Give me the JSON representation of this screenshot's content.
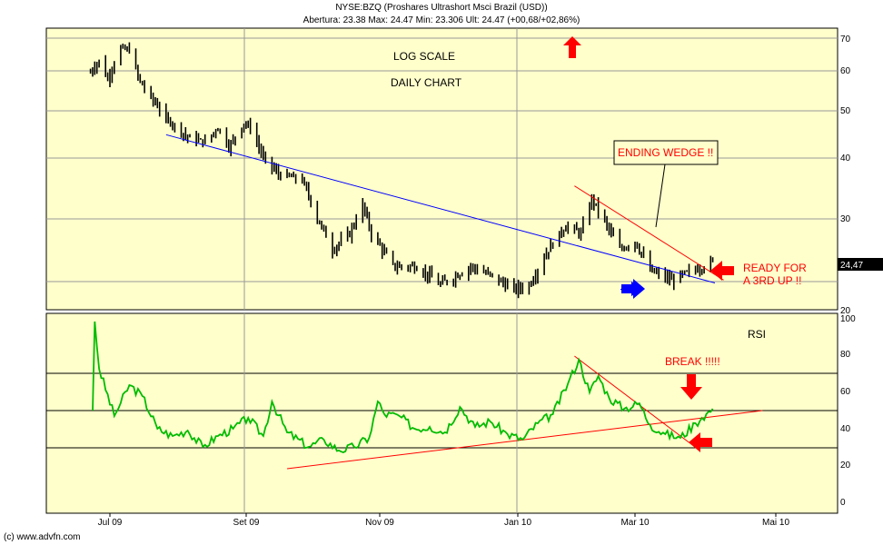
{
  "header": {
    "title": "NYSE:BZQ (Proshares Ultrashort Msci Brazil (USD))",
    "quote": "Abertura: 23.38 Max: 24.47 Min: 23.306 Ult: 24.47 (+00,68/+02,86%)"
  },
  "credit": "(c) www.advfn.com",
  "colors": {
    "background": "#ffffcc",
    "price_bars": "#000000",
    "rsi_line": "#00bb00",
    "trend_blue": "#0000ff",
    "trend_red": "#ff0000",
    "annotation": "#ff0000"
  },
  "chart_data": [
    {
      "type": "candlestick",
      "scale": "log",
      "ylim": [
        20,
        72
      ],
      "yticks": [
        20,
        30,
        40,
        50,
        60,
        70
      ],
      "xticks": [
        "Jul 09",
        "Set 09",
        "Nov 09",
        "Jan 10",
        "Mar 10",
        "Mai 10"
      ],
      "x_range": [
        "2009-06-15",
        "2010-06-01"
      ],
      "last_price_label": "24,47",
      "annotations": [
        "LOG SCALE",
        "DAILY CHART",
        "ENDING WEDGE !!",
        "READY FOR",
        "A 3RD UP !!"
      ],
      "close_path": [
        [
          "2009-06-22",
          59.5
        ],
        [
          "2009-06-26",
          63.0
        ],
        [
          "2009-06-30",
          57.5
        ],
        [
          "2009-07-06",
          67.0
        ],
        [
          "2009-07-10",
          66.0
        ],
        [
          "2009-07-15",
          57.0
        ],
        [
          "2009-07-20",
          53.0
        ],
        [
          "2009-07-27",
          48.0
        ],
        [
          "2009-08-06",
          44.0
        ],
        [
          "2009-08-14",
          43.0
        ],
        [
          "2009-08-20",
          46.0
        ],
        [
          "2009-08-25",
          42.0
        ],
        [
          "2009-09-01",
          47.0
        ],
        [
          "2009-09-04",
          46.0
        ],
        [
          "2009-09-10",
          40.0
        ],
        [
          "2009-09-17",
          37.0
        ],
        [
          "2009-09-28",
          36.0
        ],
        [
          "2009-10-05",
          30.0
        ],
        [
          "2009-10-12",
          26.0
        ],
        [
          "2009-10-20",
          28.0
        ],
        [
          "2009-10-26",
          32.0
        ],
        [
          "2009-10-30",
          28.0
        ],
        [
          "2009-11-09",
          24.0
        ],
        [
          "2009-11-20",
          24.0
        ],
        [
          "2009-12-01",
          22.0
        ],
        [
          "2009-12-08",
          23.0
        ],
        [
          "2009-12-15",
          24.0
        ],
        [
          "2009-12-24",
          23.0
        ],
        [
          "2010-01-04",
          21.5
        ],
        [
          "2010-01-11",
          22.0
        ],
        [
          "2010-01-20",
          26.0
        ],
        [
          "2010-01-28",
          29.0
        ],
        [
          "2010-02-04",
          28.0
        ],
        [
          "2010-02-09",
          33.0
        ],
        [
          "2010-02-16",
          29.0
        ],
        [
          "2010-02-22",
          26.0
        ],
        [
          "2010-03-01",
          27.0
        ],
        [
          "2010-03-08",
          23.5
        ],
        [
          "2010-03-18",
          22.5
        ],
        [
          "2010-03-25",
          23.2
        ],
        [
          "2010-04-01",
          24.0
        ],
        [
          "2010-04-06",
          24.47
        ]
      ],
      "trendlines": [
        {
          "color": "blue",
          "from": [
            "2009-07-27",
            44.5
          ],
          "to": [
            "2010-04-07",
            22.2
          ]
        },
        {
          "color": "red",
          "from": [
            "2010-02-01",
            35.0
          ],
          "to": [
            "2010-04-11",
            22.5
          ]
        }
      ]
    },
    {
      "type": "line",
      "title": "RSI",
      "ylim": [
        0,
        100
      ],
      "yticks": [
        0,
        20,
        40,
        60,
        80,
        100
      ],
      "hlines": [
        30,
        50,
        70
      ],
      "annotations": [
        "BREAK !!!!!"
      ],
      "values": [
        [
          "2009-06-23",
          50
        ],
        [
          "2009-06-24",
          99
        ],
        [
          "2009-06-26",
          73
        ],
        [
          "2009-07-03",
          47
        ],
        [
          "2009-07-10",
          64
        ],
        [
          "2009-07-16",
          58
        ],
        [
          "2009-07-23",
          40
        ],
        [
          "2009-07-30",
          36
        ],
        [
          "2009-08-06",
          39
        ],
        [
          "2009-08-13",
          30
        ],
        [
          "2009-08-20",
          36
        ],
        [
          "2009-08-27",
          40
        ],
        [
          "2009-09-03",
          46
        ],
        [
          "2009-09-10",
          36
        ],
        [
          "2009-09-14",
          55
        ],
        [
          "2009-09-21",
          38
        ],
        [
          "2009-10-01",
          30
        ],
        [
          "2009-10-08",
          34
        ],
        [
          "2009-10-15",
          28
        ],
        [
          "2009-10-22",
          30
        ],
        [
          "2009-10-29",
          35
        ],
        [
          "2009-11-02",
          55
        ],
        [
          "2009-11-05",
          48
        ],
        [
          "2009-11-12",
          47
        ],
        [
          "2009-11-19",
          40
        ],
        [
          "2009-11-26",
          41
        ],
        [
          "2009-12-03",
          38
        ],
        [
          "2009-12-10",
          52
        ],
        [
          "2009-12-17",
          41
        ],
        [
          "2009-12-24",
          44
        ],
        [
          "2010-01-01",
          37
        ],
        [
          "2010-01-08",
          34
        ],
        [
          "2010-01-15",
          43
        ],
        [
          "2010-01-22",
          48
        ],
        [
          "2010-01-29",
          65
        ],
        [
          "2010-02-03",
          78
        ],
        [
          "2010-02-08",
          60
        ],
        [
          "2010-02-12",
          69
        ],
        [
          "2010-02-17",
          57
        ],
        [
          "2010-02-24",
          51
        ],
        [
          "2010-03-03",
          54
        ],
        [
          "2010-03-08",
          42
        ],
        [
          "2010-03-15",
          37
        ],
        [
          "2010-03-22",
          35
        ],
        [
          "2010-03-29",
          43
        ],
        [
          "2010-04-01",
          46
        ],
        [
          "2010-04-06",
          51
        ]
      ],
      "trendlines": [
        {
          "color": "red",
          "from": [
            "2009-09-21",
            18.0
          ],
          "to": [
            "2010-04-29",
            50.0
          ]
        },
        {
          "color": "red",
          "from": [
            "2010-02-01",
            80.0
          ],
          "to": [
            "2010-03-31",
            28.0
          ]
        }
      ]
    }
  ]
}
